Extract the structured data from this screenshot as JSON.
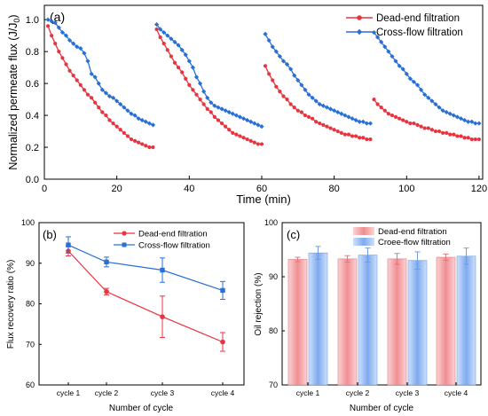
{
  "colors": {
    "dead_end": "#e8343f",
    "cross_flow": "#2a6fd6",
    "bar_dead_end": "#f2a3a6",
    "bar_cross_flow": "#8fb7f0"
  },
  "chart_data": [
    {
      "panel_label": "(a)",
      "type": "line",
      "xlabel": "Time (min)",
      "ylabel": "Normalized permeate flux (J/J",
      "ylabel_sub": "0",
      "ylabel_close": ")",
      "xlim": [
        0,
        121
      ],
      "ylim": [
        0.0,
        1.09
      ],
      "xticks": [
        "0",
        "20",
        "40",
        "60",
        "80",
        "100",
        "120"
      ],
      "yticks": [
        "0.0",
        "0.2",
        "0.4",
        "0.6",
        "0.8",
        "1.0"
      ],
      "legend": "top-right",
      "series": [
        {
          "name": "Dead-end filtration",
          "color_key": "dead_end",
          "marker": "circle",
          "points": [
            [
              1,
              0.96
            ],
            [
              2,
              0.9
            ],
            [
              3,
              0.85
            ],
            [
              4,
              0.8
            ],
            [
              5,
              0.76
            ],
            [
              6,
              0.72
            ],
            [
              7,
              0.68
            ],
            [
              8,
              0.65
            ],
            [
              9,
              0.62
            ],
            [
              10,
              0.59
            ],
            [
              11,
              0.56
            ],
            [
              12,
              0.53
            ],
            [
              13,
              0.51
            ],
            [
              14,
              0.48
            ],
            [
              15,
              0.45
            ],
            [
              16,
              0.42
            ],
            [
              17,
              0.4
            ],
            [
              18,
              0.37
            ],
            [
              19,
              0.35
            ],
            [
              20,
              0.33
            ],
            [
              21,
              0.31
            ],
            [
              22,
              0.29
            ],
            [
              23,
              0.27
            ],
            [
              24,
              0.25
            ],
            [
              25,
              0.24
            ],
            [
              26,
              0.23
            ],
            [
              27,
              0.22
            ],
            [
              28,
              0.21
            ],
            [
              29,
              0.2
            ],
            [
              30,
              0.2
            ],
            [
              31,
              0.94
            ],
            [
              32,
              0.89
            ],
            [
              33,
              0.85
            ],
            [
              34,
              0.81
            ],
            [
              35,
              0.77
            ],
            [
              36,
              0.73
            ],
            [
              37,
              0.7
            ],
            [
              38,
              0.67
            ],
            [
              39,
              0.63
            ],
            [
              40,
              0.59
            ],
            [
              41,
              0.56
            ],
            [
              42,
              0.53
            ],
            [
              43,
              0.5
            ],
            [
              44,
              0.47
            ],
            [
              45,
              0.44
            ],
            [
              46,
              0.42
            ],
            [
              47,
              0.39
            ],
            [
              48,
              0.37
            ],
            [
              49,
              0.35
            ],
            [
              50,
              0.33
            ],
            [
              51,
              0.31
            ],
            [
              52,
              0.29
            ],
            [
              53,
              0.28
            ],
            [
              54,
              0.27
            ],
            [
              55,
              0.26
            ],
            [
              56,
              0.25
            ],
            [
              57,
              0.24
            ],
            [
              58,
              0.23
            ],
            [
              59,
              0.22
            ],
            [
              60,
              0.22
            ],
            [
              61,
              0.71
            ],
            [
              62,
              0.66
            ],
            [
              63,
              0.62
            ],
            [
              64,
              0.58
            ],
            [
              65,
              0.55
            ],
            [
              66,
              0.52
            ],
            [
              67,
              0.5
            ],
            [
              68,
              0.47
            ],
            [
              69,
              0.45
            ],
            [
              70,
              0.43
            ],
            [
              71,
              0.42
            ],
            [
              72,
              0.4
            ],
            [
              73,
              0.39
            ],
            [
              74,
              0.38
            ],
            [
              75,
              0.36
            ],
            [
              76,
              0.35
            ],
            [
              77,
              0.34
            ],
            [
              78,
              0.33
            ],
            [
              79,
              0.32
            ],
            [
              80,
              0.31
            ],
            [
              81,
              0.3
            ],
            [
              82,
              0.29
            ],
            [
              83,
              0.28
            ],
            [
              84,
              0.28
            ],
            [
              85,
              0.27
            ],
            [
              86,
              0.27
            ],
            [
              87,
              0.26
            ],
            [
              88,
              0.26
            ],
            [
              89,
              0.25
            ],
            [
              90,
              0.25
            ],
            [
              91,
              0.5
            ],
            [
              92,
              0.47
            ],
            [
              93,
              0.45
            ],
            [
              94,
              0.43
            ],
            [
              95,
              0.41
            ],
            [
              96,
              0.4
            ],
            [
              97,
              0.39
            ],
            [
              98,
              0.38
            ],
            [
              99,
              0.37
            ],
            [
              100,
              0.36
            ],
            [
              101,
              0.35
            ],
            [
              102,
              0.35
            ],
            [
              103,
              0.34
            ],
            [
              104,
              0.33
            ],
            [
              105,
              0.32
            ],
            [
              106,
              0.32
            ],
            [
              107,
              0.31
            ],
            [
              108,
              0.3
            ],
            [
              109,
              0.3
            ],
            [
              110,
              0.29
            ],
            [
              111,
              0.29
            ],
            [
              112,
              0.28
            ],
            [
              113,
              0.28
            ],
            [
              114,
              0.27
            ],
            [
              115,
              0.27
            ],
            [
              116,
              0.26
            ],
            [
              117,
              0.26
            ],
            [
              118,
              0.25
            ],
            [
              119,
              0.25
            ],
            [
              120,
              0.25
            ]
          ]
        },
        {
          "name": "Cross-flow filtration",
          "color_key": "cross_flow",
          "marker": "diamond",
          "points": [
            [
              1,
              1.0
            ],
            [
              2,
              0.99
            ],
            [
              3,
              0.98
            ],
            [
              4,
              0.95
            ],
            [
              5,
              0.92
            ],
            [
              6,
              0.9
            ],
            [
              7,
              0.87
            ],
            [
              8,
              0.85
            ],
            [
              9,
              0.83
            ],
            [
              10,
              0.82
            ],
            [
              11,
              0.79
            ],
            [
              12,
              0.74
            ],
            [
              13,
              0.66
            ],
            [
              14,
              0.64
            ],
            [
              15,
              0.6
            ],
            [
              16,
              0.56
            ],
            [
              17,
              0.54
            ],
            [
              18,
              0.52
            ],
            [
              19,
              0.51
            ],
            [
              20,
              0.49
            ],
            [
              21,
              0.47
            ],
            [
              22,
              0.45
            ],
            [
              23,
              0.43
            ],
            [
              24,
              0.41
            ],
            [
              25,
              0.4
            ],
            [
              26,
              0.38
            ],
            [
              27,
              0.37
            ],
            [
              28,
              0.36
            ],
            [
              29,
              0.35
            ],
            [
              30,
              0.34
            ],
            [
              31,
              0.97
            ],
            [
              32,
              0.94
            ],
            [
              33,
              0.92
            ],
            [
              34,
              0.9
            ],
            [
              35,
              0.88
            ],
            [
              36,
              0.86
            ],
            [
              37,
              0.84
            ],
            [
              38,
              0.81
            ],
            [
              39,
              0.78
            ],
            [
              40,
              0.74
            ],
            [
              41,
              0.7
            ],
            [
              42,
              0.64
            ],
            [
              43,
              0.6
            ],
            [
              44,
              0.55
            ],
            [
              45,
              0.51
            ],
            [
              46,
              0.48
            ],
            [
              47,
              0.46
            ],
            [
              48,
              0.45
            ],
            [
              49,
              0.44
            ],
            [
              50,
              0.43
            ],
            [
              51,
              0.42
            ],
            [
              52,
              0.41
            ],
            [
              53,
              0.4
            ],
            [
              54,
              0.39
            ],
            [
              55,
              0.38
            ],
            [
              56,
              0.37
            ],
            [
              57,
              0.36
            ],
            [
              58,
              0.35
            ],
            [
              59,
              0.34
            ],
            [
              60,
              0.33
            ],
            [
              61,
              0.91
            ],
            [
              62,
              0.87
            ],
            [
              63,
              0.83
            ],
            [
              64,
              0.8
            ],
            [
              65,
              0.77
            ],
            [
              66,
              0.74
            ],
            [
              67,
              0.72
            ],
            [
              68,
              0.69
            ],
            [
              69,
              0.65
            ],
            [
              70,
              0.62
            ],
            [
              71,
              0.59
            ],
            [
              72,
              0.56
            ],
            [
              73,
              0.53
            ],
            [
              74,
              0.51
            ],
            [
              75,
              0.49
            ],
            [
              76,
              0.47
            ],
            [
              77,
              0.46
            ],
            [
              78,
              0.45
            ],
            [
              79,
              0.44
            ],
            [
              80,
              0.43
            ],
            [
              81,
              0.42
            ],
            [
              82,
              0.41
            ],
            [
              83,
              0.4
            ],
            [
              84,
              0.39
            ],
            [
              85,
              0.38
            ],
            [
              86,
              0.37
            ],
            [
              87,
              0.36
            ],
            [
              88,
              0.36
            ],
            [
              89,
              0.35
            ],
            [
              90,
              0.35
            ],
            [
              91,
              0.92
            ],
            [
              92,
              0.89
            ],
            [
              93,
              0.86
            ],
            [
              94,
              0.83
            ],
            [
              95,
              0.8
            ],
            [
              96,
              0.77
            ],
            [
              97,
              0.74
            ],
            [
              98,
              0.71
            ],
            [
              99,
              0.69
            ],
            [
              100,
              0.66
            ],
            [
              101,
              0.63
            ],
            [
              102,
              0.61
            ],
            [
              103,
              0.59
            ],
            [
              104,
              0.56
            ],
            [
              105,
              0.53
            ],
            [
              106,
              0.51
            ],
            [
              107,
              0.49
            ],
            [
              108,
              0.47
            ],
            [
              109,
              0.45
            ],
            [
              110,
              0.43
            ],
            [
              111,
              0.42
            ],
            [
              112,
              0.41
            ],
            [
              113,
              0.4
            ],
            [
              114,
              0.39
            ],
            [
              115,
              0.38
            ],
            [
              116,
              0.37
            ],
            [
              117,
              0.36
            ],
            [
              118,
              0.36
            ],
            [
              119,
              0.35
            ],
            [
              120,
              0.35
            ]
          ]
        }
      ]
    },
    {
      "panel_label": "(b)",
      "type": "line",
      "xlabel": "Number of cycle",
      "ylabel": "Flux recovery ratio (%)",
      "categories": [
        "cycle 1",
        "cycle 2",
        "cycle 3",
        "cycle 4"
      ],
      "ylim": [
        60,
        100
      ],
      "yticks": [
        "60",
        "70",
        "80",
        "90",
        "100"
      ],
      "legend": "top-right",
      "series": [
        {
          "name": "Dead-end filtration",
          "color_key": "dead_end",
          "marker": "circle",
          "values": [
            93.0,
            83.0,
            76.8,
            70.6
          ],
          "errors": [
            1.2,
            0.8,
            5.1,
            2.3
          ]
        },
        {
          "name": "Cross-flow filtration",
          "color_key": "cross_flow",
          "marker": "square",
          "values": [
            94.5,
            90.3,
            88.3,
            83.3
          ],
          "errors": [
            2.0,
            1.2,
            3.0,
            2.2
          ]
        }
      ]
    },
    {
      "panel_label": "(c)",
      "type": "bar",
      "xlabel": "Number of cycle",
      "ylabel": "Oil rejection (%)",
      "categories": [
        "cycle 1",
        "cycle 2",
        "cycle 3",
        "cycle 4"
      ],
      "ylim": [
        70,
        100
      ],
      "yticks": [
        "70",
        "80",
        "90",
        "100"
      ],
      "legend": "top-right",
      "series": [
        {
          "name": "Dead-end filtration",
          "color_key": "bar_dead_end",
          "values": [
            93.2,
            93.3,
            93.3,
            93.6
          ],
          "errors": [
            0.4,
            0.6,
            1.0,
            0.6
          ]
        },
        {
          "name": "Croee-flow filtration",
          "color_key": "bar_cross_flow",
          "values": [
            94.4,
            94.0,
            93.0,
            93.8
          ],
          "errors": [
            1.2,
            1.3,
            1.6,
            1.5
          ]
        }
      ]
    }
  ]
}
